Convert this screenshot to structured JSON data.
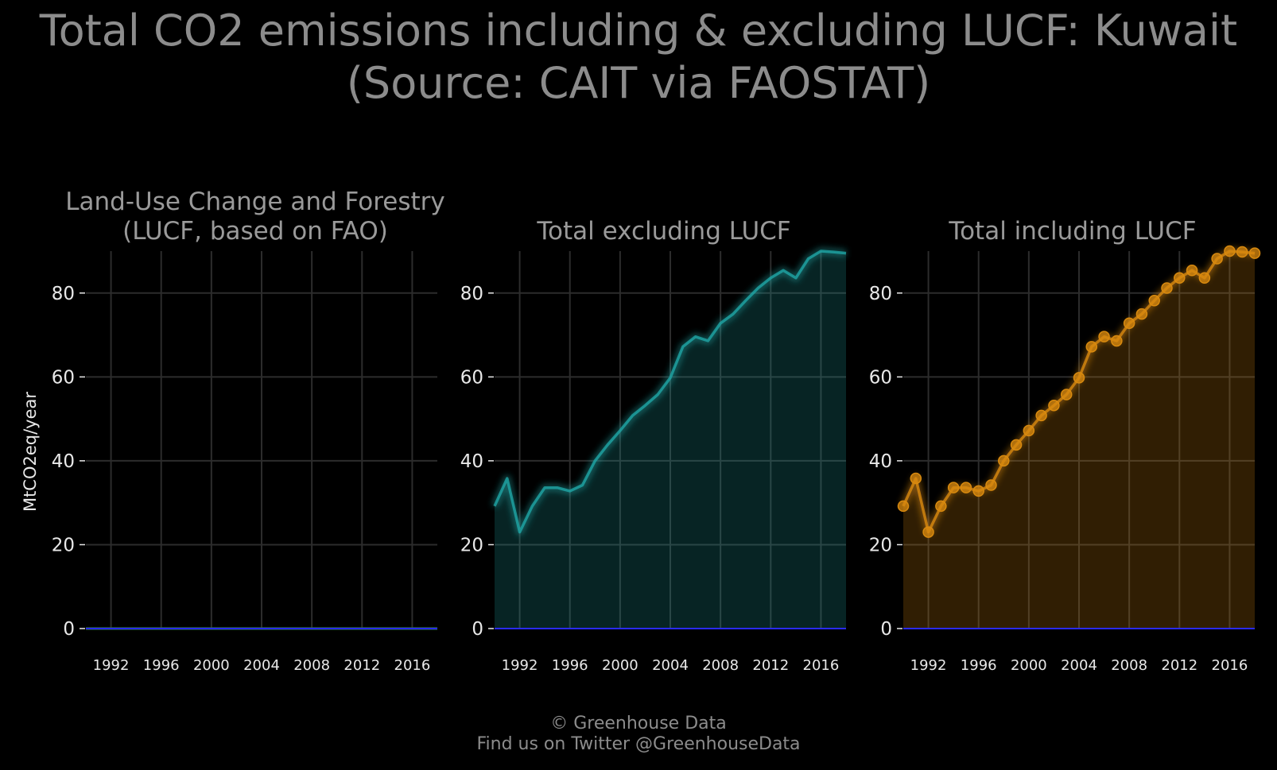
{
  "title": {
    "line1": "Total CO2 emissions including & excluding LUCF: Kuwait",
    "line2": "(Source: CAIT via FAOSTAT)"
  },
  "footer": {
    "line1": "© Greenhouse Data",
    "line2": "Find us on Twitter @GreenhouseData"
  },
  "chart_data": [
    {
      "type": "area",
      "title_lines": [
        "Land-Use Change and Forestry",
        "(LUCF, based on FAO)"
      ],
      "ylabel": "MtCO2eq/year",
      "ylim": [
        0,
        90
      ],
      "xlim": [
        1990,
        2018
      ],
      "yticks": [
        0,
        20,
        40,
        60,
        80
      ],
      "xticks": [
        1992,
        1996,
        2000,
        2004,
        2008,
        2012,
        2016
      ],
      "grid": true,
      "color": "#2e7d32",
      "series": [
        {
          "x": [
            1990,
            1991,
            1992,
            1993,
            1994,
            1995,
            1996,
            1997,
            1998,
            1999,
            2000,
            2001,
            2002,
            2003,
            2004,
            2005,
            2006,
            2007,
            2008,
            2009,
            2010,
            2011,
            2012,
            2013,
            2014,
            2015,
            2016,
            2017,
            2018
          ],
          "values": [
            0,
            0,
            0,
            0,
            0,
            0,
            0,
            0,
            0,
            0,
            0,
            0,
            0,
            0,
            0,
            0,
            0,
            0,
            0,
            0,
            0,
            0,
            0,
            0,
            0,
            0,
            0,
            0,
            0
          ]
        }
      ]
    },
    {
      "type": "area",
      "title_lines": [
        "Total excluding LUCF"
      ],
      "ylabel": "",
      "ylim": [
        0,
        90
      ],
      "xlim": [
        1990,
        2018
      ],
      "yticks": [
        0,
        20,
        40,
        60,
        80
      ],
      "xticks": [
        1992,
        1996,
        2000,
        2004,
        2008,
        2012,
        2016
      ],
      "grid": true,
      "color": "#1fa6a6",
      "series": [
        {
          "x": [
            1990,
            1991,
            1992,
            1993,
            1994,
            1995,
            1996,
            1997,
            1998,
            1999,
            2000,
            2001,
            2002,
            2003,
            2004,
            2005,
            2006,
            2007,
            2008,
            2009,
            2010,
            2011,
            2012,
            2013,
            2014,
            2015,
            2016,
            2017,
            2018
          ],
          "values": [
            29.2,
            35.8,
            23.0,
            29.2,
            33.6,
            33.6,
            32.8,
            34.2,
            40.0,
            43.8,
            47.2,
            50.8,
            53.2,
            55.8,
            59.8,
            67.2,
            69.6,
            68.6,
            72.8,
            75.0,
            78.2,
            81.2,
            83.6,
            85.4,
            83.6,
            88.2,
            90.0,
            89.8,
            89.5
          ]
        }
      ]
    },
    {
      "type": "area",
      "title_lines": [
        "Total including LUCF"
      ],
      "ylabel": "",
      "ylim": [
        0,
        90
      ],
      "xlim": [
        1990,
        2018
      ],
      "yticks": [
        0,
        20,
        40,
        60,
        80
      ],
      "xticks": [
        1992,
        1996,
        2000,
        2004,
        2008,
        2012,
        2016
      ],
      "grid": true,
      "color": "#d98a0f",
      "markers": true,
      "series": [
        {
          "x": [
            1990,
            1991,
            1992,
            1993,
            1994,
            1995,
            1996,
            1997,
            1998,
            1999,
            2000,
            2001,
            2002,
            2003,
            2004,
            2005,
            2006,
            2007,
            2008,
            2009,
            2010,
            2011,
            2012,
            2013,
            2014,
            2015,
            2016,
            2017,
            2018
          ],
          "values": [
            29.2,
            35.8,
            23.0,
            29.2,
            33.6,
            33.6,
            32.8,
            34.2,
            40.0,
            43.8,
            47.2,
            50.8,
            53.2,
            55.8,
            59.8,
            67.2,
            69.6,
            68.6,
            72.8,
            75.0,
            78.2,
            81.2,
            83.6,
            85.4,
            83.6,
            88.2,
            90.0,
            89.8,
            89.5
          ]
        }
      ]
    }
  ]
}
